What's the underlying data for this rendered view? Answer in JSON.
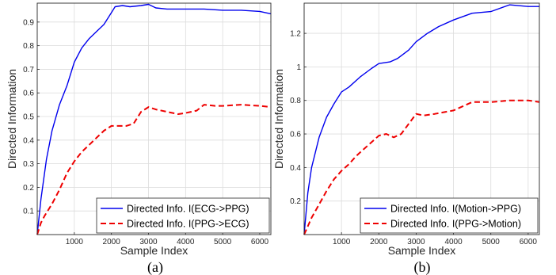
{
  "chart_data": [
    {
      "type": "line",
      "panel_label": "(a)",
      "xlabel": "Sample Index",
      "ylabel": "Directed Information",
      "xlim": [
        0,
        6300
      ],
      "ylim": [
        0,
        0.98
      ],
      "xticks": [
        1000,
        2000,
        3000,
        4000,
        5000,
        6000
      ],
      "yticks": [
        0.1,
        0.2,
        0.3,
        0.4,
        0.5,
        0.6,
        0.7,
        0.8,
        0.9
      ],
      "grid": true,
      "legend_position": "bottom-right",
      "series": [
        {
          "name": "Directed Info. I(ECG->PPG)",
          "color": "#0000ee",
          "dash": "solid",
          "x": [
            0,
            100,
            250,
            400,
            600,
            800,
            1000,
            1200,
            1400,
            1600,
            1800,
            2000,
            2100,
            2300,
            2500,
            2800,
            3000,
            3200,
            3500,
            4000,
            4500,
            5000,
            5500,
            6000,
            6300
          ],
          "y": [
            0.0,
            0.15,
            0.32,
            0.44,
            0.55,
            0.63,
            0.73,
            0.79,
            0.83,
            0.86,
            0.89,
            0.94,
            0.965,
            0.97,
            0.965,
            0.97,
            0.975,
            0.96,
            0.955,
            0.955,
            0.955,
            0.95,
            0.95,
            0.945,
            0.935
          ]
        },
        {
          "name": "Directed Info. I(PPG->ECG)",
          "color": "#ee0000",
          "dash": "dashed",
          "x": [
            0,
            100,
            200,
            400,
            600,
            800,
            1000,
            1200,
            1400,
            1600,
            1800,
            2000,
            2200,
            2400,
            2600,
            2800,
            3000,
            3200,
            3500,
            3800,
            4000,
            4300,
            4500,
            4800,
            5000,
            5500,
            6000,
            6300
          ],
          "y": [
            0.0,
            0.05,
            0.08,
            0.13,
            0.19,
            0.26,
            0.31,
            0.35,
            0.38,
            0.41,
            0.44,
            0.46,
            0.46,
            0.46,
            0.47,
            0.52,
            0.54,
            0.53,
            0.52,
            0.51,
            0.515,
            0.525,
            0.55,
            0.545,
            0.545,
            0.55,
            0.545,
            0.54
          ]
        }
      ]
    },
    {
      "type": "line",
      "panel_label": "(b)",
      "xlabel": "Sample Index",
      "ylabel": "Directed Information",
      "xlim": [
        0,
        6300
      ],
      "ylim": [
        0,
        1.38
      ],
      "xticks": [
        1000,
        2000,
        3000,
        4000,
        5000,
        6000
      ],
      "yticks": [
        0.2,
        0.4,
        0.6,
        0.8,
        1,
        1.2
      ],
      "grid": true,
      "legend_position": "bottom-right",
      "series": [
        {
          "name": "Directed Info. I(Motion->PPG)",
          "color": "#0000ee",
          "dash": "solid",
          "x": [
            0,
            100,
            200,
            400,
            600,
            800,
            1000,
            1200,
            1500,
            1800,
            2000,
            2300,
            2500,
            2800,
            3000,
            3300,
            3600,
            4000,
            4500,
            5000,
            5500,
            6000,
            6300
          ],
          "y": [
            0.0,
            0.25,
            0.4,
            0.58,
            0.7,
            0.78,
            0.85,
            0.88,
            0.94,
            0.99,
            1.02,
            1.03,
            1.05,
            1.1,
            1.15,
            1.2,
            1.24,
            1.28,
            1.32,
            1.33,
            1.37,
            1.36,
            1.36
          ]
        },
        {
          "name": "Directed Info. I(PPG->Motion)",
          "color": "#ee0000",
          "dash": "dashed",
          "x": [
            0,
            100,
            200,
            400,
            600,
            800,
            1000,
            1200,
            1400,
            1600,
            1800,
            2000,
            2200,
            2400,
            2600,
            2800,
            3000,
            3200,
            3500,
            4000,
            4500,
            5000,
            5500,
            6000,
            6300
          ],
          "y": [
            0.0,
            0.05,
            0.1,
            0.18,
            0.26,
            0.33,
            0.38,
            0.42,
            0.47,
            0.51,
            0.55,
            0.59,
            0.6,
            0.58,
            0.6,
            0.66,
            0.72,
            0.71,
            0.72,
            0.74,
            0.79,
            0.79,
            0.8,
            0.8,
            0.79
          ]
        }
      ]
    }
  ]
}
